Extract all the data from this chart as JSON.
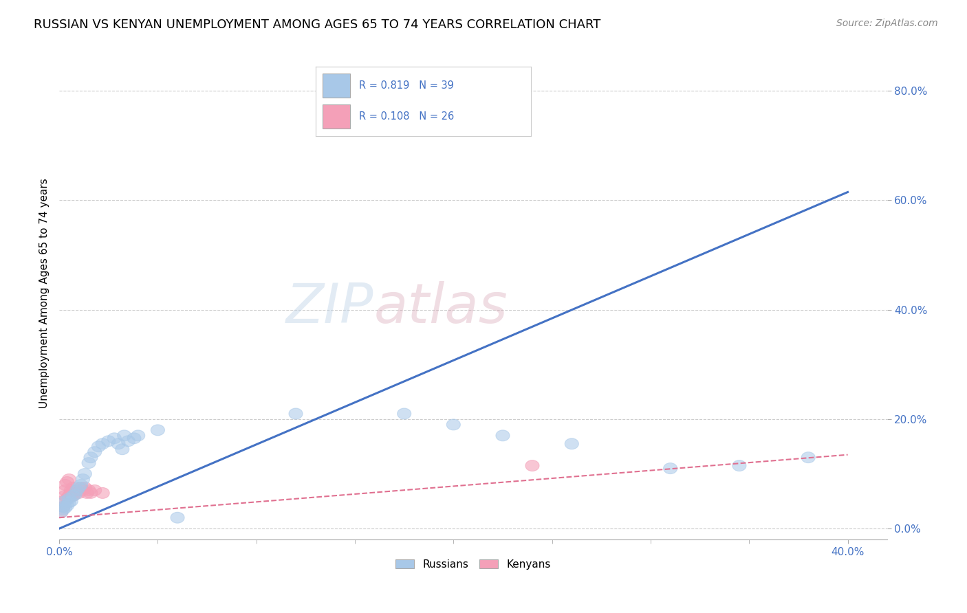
{
  "title": "RUSSIAN VS KENYAN UNEMPLOYMENT AMONG AGES 65 TO 74 YEARS CORRELATION CHART",
  "source": "Source: ZipAtlas.com",
  "ylabel": "Unemployment Among Ages 65 to 74 years",
  "xlim": [
    0.0,
    0.42
  ],
  "ylim": [
    -0.02,
    0.88
  ],
  "ytick_positions": [
    0.0,
    0.2,
    0.4,
    0.6,
    0.8
  ],
  "ytick_labels": [
    "0.0%",
    "20.0%",
    "40.0%",
    "60.0%",
    "80.0%"
  ],
  "xtick_left_val": 0.0,
  "xtick_right_val": 0.4,
  "xtick_left_label": "0.0%",
  "xtick_right_label": "40.0%",
  "russian_color": "#a8c8e8",
  "kenyan_color": "#f4a0b8",
  "russian_line_color": "#4472c4",
  "kenyan_line_color": "#e07090",
  "watermark_zip": "ZIP",
  "watermark_atlas": "atlas",
  "legend_items": [
    {
      "label": "R = 0.819   N = 39",
      "color": "#a8c8e8"
    },
    {
      "label": "R = 0.108   N = 26",
      "color": "#f4a0b8"
    }
  ],
  "bottom_legend": [
    "Russians",
    "Kenyans"
  ],
  "russian_scatter": {
    "x": [
      0.001,
      0.002,
      0.002,
      0.003,
      0.003,
      0.004,
      0.005,
      0.005,
      0.006,
      0.007,
      0.008,
      0.009,
      0.01,
      0.011,
      0.012,
      0.013,
      0.015,
      0.016,
      0.018,
      0.02,
      0.022,
      0.025,
      0.028,
      0.03,
      0.032,
      0.033,
      0.035,
      0.038,
      0.04,
      0.05,
      0.06,
      0.12,
      0.175,
      0.2,
      0.225,
      0.26,
      0.31,
      0.345,
      0.38
    ],
    "y": [
      0.03,
      0.035,
      0.04,
      0.038,
      0.05,
      0.042,
      0.048,
      0.055,
      0.05,
      0.06,
      0.062,
      0.07,
      0.075,
      0.08,
      0.09,
      0.1,
      0.12,
      0.13,
      0.14,
      0.15,
      0.155,
      0.16,
      0.165,
      0.155,
      0.145,
      0.17,
      0.16,
      0.165,
      0.17,
      0.18,
      0.02,
      0.21,
      0.21,
      0.19,
      0.17,
      0.155,
      0.11,
      0.115,
      0.13
    ]
  },
  "kenyan_scatter": {
    "x": [
      0.001,
      0.002,
      0.002,
      0.003,
      0.003,
      0.003,
      0.004,
      0.004,
      0.005,
      0.005,
      0.006,
      0.006,
      0.007,
      0.007,
      0.008,
      0.009,
      0.01,
      0.011,
      0.012,
      0.013,
      0.014,
      0.015,
      0.016,
      0.018,
      0.022,
      0.24
    ],
    "y": [
      0.03,
      0.04,
      0.05,
      0.06,
      0.07,
      0.08,
      0.055,
      0.085,
      0.06,
      0.09,
      0.065,
      0.07,
      0.06,
      0.075,
      0.065,
      0.07,
      0.065,
      0.075,
      0.07,
      0.075,
      0.065,
      0.07,
      0.065,
      0.07,
      0.065,
      0.115
    ]
  },
  "russian_trendline": [
    0.0,
    0.0,
    0.4,
    0.615
  ],
  "kenyan_trendline": [
    0.0,
    0.02,
    0.4,
    0.135
  ],
  "title_fontsize": 13,
  "source_fontsize": 10,
  "ylabel_fontsize": 11,
  "tick_fontsize": 11,
  "legend_fontsize": 11
}
